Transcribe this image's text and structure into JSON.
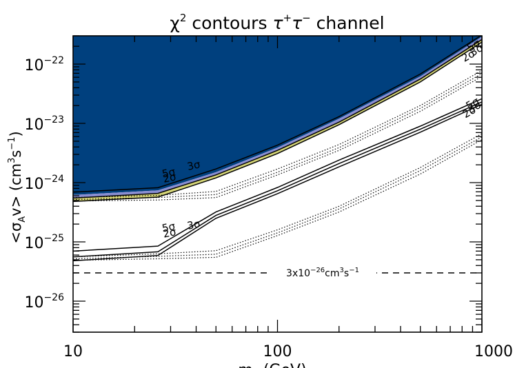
{
  "chart_data": {
    "type": "line",
    "title_main": "χ",
    "title_sup": "2",
    "title_rest": " contours ",
    "title_channel_base1": "τ",
    "title_channel_sup1": "+",
    "title_channel_base2": "τ",
    "title_channel_sup2": "−",
    "title_tail": " channel",
    "xlabel_base": "m",
    "xlabel_sub": "χ",
    "xlabel_unit": " (GeV)",
    "ylabel_open": "<σ",
    "ylabel_sub": "A",
    "ylabel_mid": "v> (cm",
    "ylabel_sup1": "3",
    "ylabel_s": "s",
    "ylabel_sup2": "−1",
    "ylabel_close": ")",
    "x_scale": "log",
    "y_scale": "log",
    "xlim": [
      10,
      1000
    ],
    "ylim": [
      3e-27,
      3e-22
    ],
    "x_ticks": [
      {
        "value": 10,
        "label": "10"
      },
      {
        "value": 100,
        "label": "100"
      },
      {
        "value": 1000,
        "label": "1000"
      }
    ],
    "y_ticks": [
      {
        "value": 1e-26,
        "base": "10",
        "exp": "−26"
      },
      {
        "value": 1e-25,
        "base": "10",
        "exp": "−25"
      },
      {
        "value": 1e-24,
        "base": "10",
        "exp": "−24"
      },
      {
        "value": 1e-23,
        "base": "10",
        "exp": "−23"
      },
      {
        "value": 1e-22,
        "base": "10",
        "exp": "−22"
      }
    ],
    "colors": {
      "excluded": "#00407e",
      "band_5sigma": "#8a8ed2",
      "band_3sigma": "#6a70c4",
      "band_2sigma": "#d6d678"
    },
    "excluded_region_edge": {
      "x": [
        10,
        26,
        50,
        100,
        200,
        500,
        1000
      ],
      "y": [
        6.2e-25,
        7.4e-25,
        1.5e-24,
        3.9e-24,
        1.2e-23,
        6.2e-23,
        2.9e-22
      ]
    },
    "upper_contours": [
      {
        "label": "5σ",
        "x": [
          10,
          26,
          50,
          100,
          200,
          500,
          1000
        ],
        "y": [
          6.9e-25,
          8.2e-25,
          1.7e-24,
          4.3e-24,
          1.3e-23,
          6.8e-23,
          3.1e-22
        ]
      },
      {
        "label": "3σ",
        "x": [
          10,
          26,
          50,
          100,
          200,
          500,
          1000
        ],
        "y": [
          5.5e-25,
          6.6e-25,
          1.35e-24,
          3.5e-24,
          1.05e-23,
          5.6e-23,
          2.6e-22
        ]
      },
      {
        "label": "2σ",
        "x": [
          10,
          26,
          50,
          100,
          200,
          500,
          1000
        ],
        "y": [
          4.8e-25,
          5.7e-25,
          1.2e-24,
          3.1e-24,
          9.5e-24,
          5e-23,
          2.35e-22
        ]
      }
    ],
    "lower_contours": [
      {
        "label": "5σ",
        "x": [
          10,
          26,
          50,
          100,
          200,
          500,
          1000
        ],
        "y": [
          7e-26,
          8.5e-26,
          3.2e-25,
          8.3e-25,
          2.4e-24,
          9e-24,
          2.6e-23
        ]
      },
      {
        "label": "3σ",
        "x": [
          10,
          26,
          50,
          100,
          200,
          500,
          1000
        ],
        "y": [
          5.6e-26,
          6.8e-26,
          2.8e-25,
          7.3e-25,
          2.1e-24,
          8e-24,
          2.3e-23
        ]
      },
      {
        "label": "2σ",
        "x": [
          10,
          26,
          50,
          100,
          200,
          500,
          1000
        ],
        "y": [
          4.8e-26,
          5.9e-26,
          2.5e-25,
          6.5e-25,
          1.85e-24,
          7.1e-24,
          2.1e-23
        ]
      }
    ],
    "dotted_upper": [
      {
        "x": [
          10,
          26,
          50,
          100,
          200,
          500,
          1000
        ],
        "y": [
          5.6e-25,
          6.1e-25,
          7.1e-25,
          1.7e-24,
          4.4e-24,
          2e-23,
          7.8e-23
        ]
      },
      {
        "x": [
          10,
          26,
          50,
          100,
          200,
          500,
          1000
        ],
        "y": [
          5.2e-25,
          5.6e-25,
          6.3e-25,
          1.5e-24,
          3.9e-24,
          1.8e-23,
          6.9e-23
        ]
      },
      {
        "x": [
          10,
          26,
          50,
          100,
          200,
          500,
          1000
        ],
        "y": [
          4.9e-25,
          5.1e-25,
          5.6e-25,
          1.35e-24,
          3.5e-24,
          1.6e-23,
          6.2e-23
        ]
      }
    ],
    "dotted_lower": [
      {
        "x": [
          10,
          26,
          50,
          100,
          200,
          500,
          1000
        ],
        "y": [
          5.6e-26,
          6.3e-26,
          7.1e-26,
          1.6e-25,
          4e-25,
          1.8e-24,
          6.7e-24
        ]
      },
      {
        "x": [
          10,
          26,
          50,
          100,
          200,
          500,
          1000
        ],
        "y": [
          5.2e-26,
          5.7e-26,
          6.2e-26,
          1.42e-25,
          3.6e-25,
          1.6e-24,
          5.9e-24
        ]
      },
      {
        "x": [
          10,
          26,
          50,
          100,
          200,
          500,
          1000
        ],
        "y": [
          4.9e-26,
          5.2e-26,
          5.5e-26,
          1.28e-25,
          3.2e-25,
          1.4e-24,
          5.3e-24
        ]
      }
    ],
    "reference_line": {
      "y": 3e-26,
      "label_base": "3x10",
      "label_exp": "−26",
      "label_unit": "cm",
      "label_exp2": "3",
      "label_s": "s",
      "label_exp3": "−1"
    },
    "contour_labels": [
      {
        "text": "5σ",
        "x": 27.5,
        "y": 1.22e-24,
        "angle": -12
      },
      {
        "text": "3σ",
        "x": 36.5,
        "y": 1.62e-24,
        "angle": -12
      },
      {
        "text": "2σ",
        "x": 27.8,
        "y": 1e-24,
        "angle": -12
      },
      {
        "text": "5σ",
        "x": 870,
        "y": 1.62e-22,
        "angle": -30
      },
      {
        "text": "3σ",
        "x": 900,
        "y": 1.35e-22,
        "angle": -30
      },
      {
        "text": "2σ",
        "x": 820,
        "y": 1.08e-22,
        "angle": -30
      },
      {
        "text": "5σ",
        "x": 27.5,
        "y": 1.47e-25,
        "angle": -12
      },
      {
        "text": "3σ",
        "x": 36.5,
        "y": 1.62e-25,
        "angle": -12
      },
      {
        "text": "2σ",
        "x": 27.8,
        "y": 1.18e-25,
        "angle": -12
      },
      {
        "text": "5σ",
        "x": 860,
        "y": 1.7e-23,
        "angle": -30
      },
      {
        "text": "3σ",
        "x": 880,
        "y": 1.47e-23,
        "angle": -30
      },
      {
        "text": "2σ",
        "x": 830,
        "y": 1.22e-23,
        "angle": -30
      }
    ]
  }
}
